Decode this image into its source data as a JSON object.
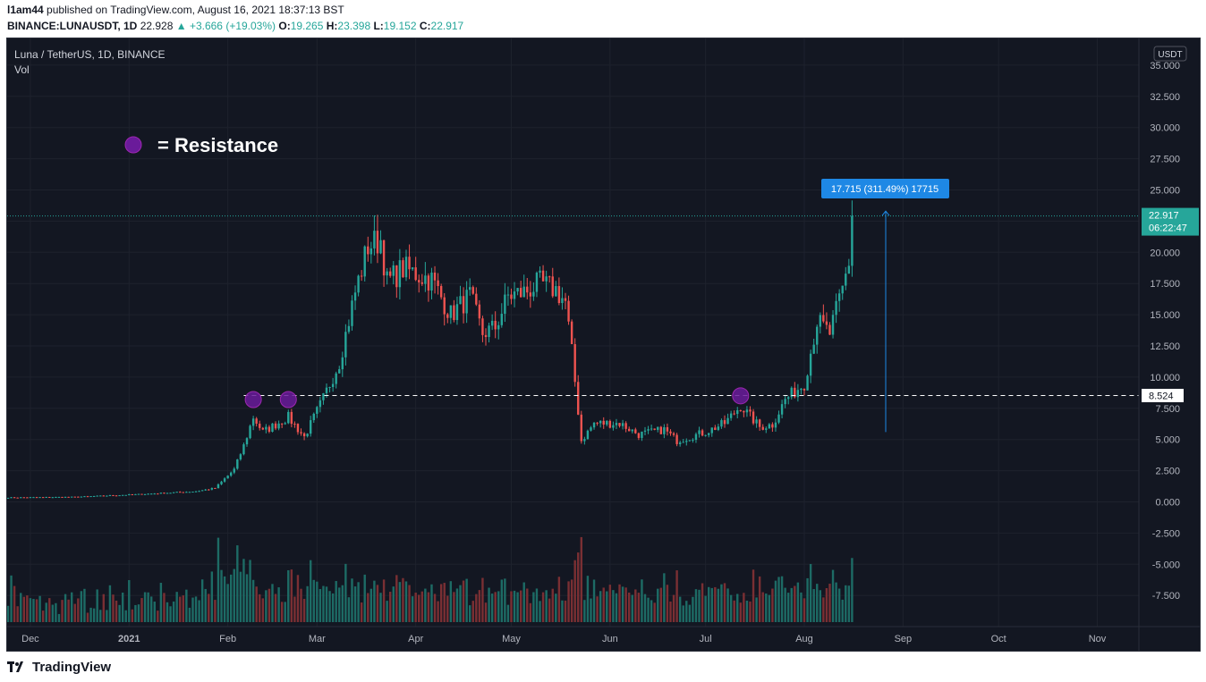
{
  "header": {
    "publisher": "l1am44",
    "published_text": "published on TradingView.com, August 16, 2021 18:37:13 BST",
    "symbol": "BINANCE:LUNAUSDT, 1D",
    "price": "22.928",
    "change": "▲ +3.666 (+19.03%)",
    "o_label": "O:",
    "o_value": "19.265",
    "h_label": "H:",
    "h_value": "23.398",
    "l_label": "L:",
    "l_value": "19.152",
    "c_label": "C:",
    "c_value": "22.917"
  },
  "chart_legend": {
    "title": "Luna / TetherUS, 1D, BINANCE",
    "volume_label": "Vol"
  },
  "annotation": {
    "resistance_text": "= Resistance",
    "measure_label": "17.715 (311.49%) 17715"
  },
  "price_axis": {
    "currency_button": "USDT",
    "last_price_tag": "22.917",
    "countdown_tag": "06:22:47",
    "level_tag": "8.524"
  },
  "footer": {
    "brand": "TradingView"
  },
  "chart_data": {
    "type": "candlestick",
    "title": "Luna / TetherUS, 1D, BINANCE",
    "y_ticks": [
      "35.000",
      "32.500",
      "30.000",
      "27.500",
      "25.000",
      "22.500",
      "20.000",
      "17.500",
      "15.000",
      "12.500",
      "10.000",
      "7.500",
      "5.000",
      "2.500",
      "0.000",
      "-2.500",
      "-5.000",
      "-7.500"
    ],
    "x_ticks": [
      "Dec",
      "2021",
      "Feb",
      "Mar",
      "Apr",
      "May",
      "Jun",
      "Jul",
      "Aug",
      "Sep",
      "Oct",
      "Nov"
    ],
    "ylim": [
      -9.9,
      35.8
    ],
    "resistance_level": 8.524,
    "last_close": 22.917,
    "measure": {
      "from": 5.6,
      "to": 23.3,
      "text": "17.715 (311.49%) 17715"
    },
    "resistance_touches": [
      {
        "date": "2021-02-09",
        "value": 8.2
      },
      {
        "date": "2021-02-20",
        "value": 8.2
      },
      {
        "date": "2021-07-12",
        "value": 8.5
      }
    ],
    "series": [
      {
        "name": "price_keypoints",
        "points": [
          [
            "2020-11-24",
            0.35
          ],
          [
            "2020-12-15",
            0.4
          ],
          [
            "2021-01-05",
            0.62
          ],
          [
            "2021-01-22",
            0.85
          ],
          [
            "2021-01-28",
            1.1
          ],
          [
            "2021-02-03",
            2.6
          ],
          [
            "2021-02-06",
            4.5
          ],
          [
            "2021-02-09",
            6.8
          ],
          [
            "2021-02-12",
            5.6
          ],
          [
            "2021-02-20",
            6.8
          ],
          [
            "2021-02-25",
            5.2
          ],
          [
            "2021-03-03",
            8.3
          ],
          [
            "2021-03-08",
            11.2
          ],
          [
            "2021-03-13",
            16.8
          ],
          [
            "2021-03-17",
            20.5
          ],
          [
            "2021-03-21",
            21.0
          ],
          [
            "2021-03-23",
            17.6
          ],
          [
            "2021-03-28",
            18.7
          ],
          [
            "2021-04-06",
            17.8
          ],
          [
            "2021-04-12",
            15.0
          ],
          [
            "2021-04-18",
            16.5
          ],
          [
            "2021-04-22",
            13.5
          ],
          [
            "2021-04-26",
            14.0
          ],
          [
            "2021-04-30",
            16.5
          ],
          [
            "2021-05-05",
            16.8
          ],
          [
            "2021-05-10",
            17.5
          ],
          [
            "2021-05-15",
            17.0
          ],
          [
            "2021-05-18",
            16.0
          ],
          [
            "2021-05-20",
            12.0
          ],
          [
            "2021-05-23",
            4.9
          ],
          [
            "2021-05-27",
            6.3
          ],
          [
            "2021-06-04",
            6.3
          ],
          [
            "2021-06-10",
            5.4
          ],
          [
            "2021-06-18",
            5.8
          ],
          [
            "2021-06-22",
            4.9
          ],
          [
            "2021-07-01",
            5.6
          ],
          [
            "2021-07-07",
            6.3
          ],
          [
            "2021-07-12",
            7.7
          ],
          [
            "2021-07-18",
            6.0
          ],
          [
            "2021-07-22",
            6.2
          ],
          [
            "2021-07-26",
            8.2
          ],
          [
            "2021-08-01",
            9.5
          ],
          [
            "2021-08-05",
            14.5
          ],
          [
            "2021-08-09",
            13.5
          ],
          [
            "2021-08-13",
            17.0
          ],
          [
            "2021-08-15",
            19.27
          ],
          [
            "2021-08-16",
            22.92
          ]
        ]
      }
    ]
  },
  "colors": {
    "background": "#131722",
    "grid": "#1e222d",
    "axis_text": "#b2b5be",
    "up": "#26a69a",
    "down": "#ef5350",
    "vol_up": "#1d6b65",
    "vol_down": "#7a2f33",
    "accent": "#1e88e5",
    "resistance_marker": "#6a1b9a"
  }
}
